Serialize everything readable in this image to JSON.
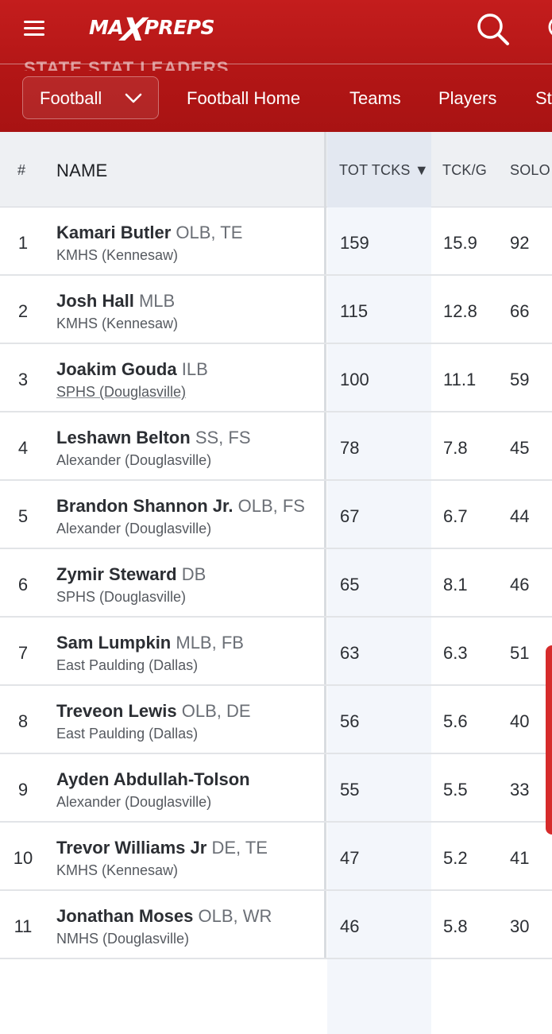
{
  "header": {
    "logo_text_left": "MA",
    "logo_x": "X",
    "logo_text_right": "PREPS",
    "ghost_title": "STATE STAT LEADERS"
  },
  "subnav": {
    "sport": "Football",
    "links": [
      "Football Home",
      "Teams",
      "Players",
      "St"
    ]
  },
  "table": {
    "columns": {
      "rank": "#",
      "name": "NAME",
      "tot_tcks": "TOT TCKS",
      "sort_arrow": "▼",
      "tck_g": "TCK/G",
      "solo": "SOLO"
    },
    "rows": [
      {
        "rank": "1",
        "name": "Kamari Butler",
        "pos": "OLB, TE",
        "school": "KMHS (Kennesaw)",
        "tot": "159",
        "tckg": "15.9",
        "solo": "92"
      },
      {
        "rank": "2",
        "name": "Josh Hall",
        "pos": "MLB",
        "school": "KMHS (Kennesaw)",
        "tot": "115",
        "tckg": "12.8",
        "solo": "66"
      },
      {
        "rank": "3",
        "name": "Joakim Gouda",
        "pos": "ILB",
        "school": "SPHS (Douglasville)",
        "tot": "100",
        "tckg": "11.1",
        "solo": "59"
      },
      {
        "rank": "4",
        "name": "Leshawn Belton",
        "pos": "SS, FS",
        "school": "Alexander (Douglasville)",
        "tot": "78",
        "tckg": "7.8",
        "solo": "45"
      },
      {
        "rank": "5",
        "name": "Brandon Shannon Jr.",
        "pos": "OLB, FS",
        "school": "Alexander (Douglasville)",
        "tot": "67",
        "tckg": "6.7",
        "solo": "44"
      },
      {
        "rank": "6",
        "name": "Zymir Steward",
        "pos": "DB",
        "school": "SPHS (Douglasville)",
        "tot": "65",
        "tckg": "8.1",
        "solo": "46"
      },
      {
        "rank": "7",
        "name": "Sam Lumpkin",
        "pos": "MLB, FB",
        "school": "East Paulding (Dallas)",
        "tot": "63",
        "tckg": "6.3",
        "solo": "51"
      },
      {
        "rank": "8",
        "name": "Treveon Lewis",
        "pos": "OLB, DE",
        "school": "East Paulding (Dallas)",
        "tot": "56",
        "tckg": "5.6",
        "solo": "40"
      },
      {
        "rank": "9",
        "name": "Ayden Abdullah-Tolson",
        "pos": "",
        "school": "Alexander (Douglasville)",
        "tot": "55",
        "tckg": "5.5",
        "solo": "33"
      },
      {
        "rank": "10",
        "name": "Trevor Williams Jr",
        "pos": "DE, TE",
        "school": "KMHS (Kennesaw)",
        "tot": "47",
        "tckg": "5.2",
        "solo": "41"
      },
      {
        "rank": "11",
        "name": "Jonathan Moses",
        "pos": "OLB, WR",
        "school": "NMHS (Douglasville)",
        "tot": "46",
        "tckg": "5.8",
        "solo": "30"
      }
    ]
  },
  "colors": {
    "brand_red": "#c41d1d",
    "subnav_red": "#b41616",
    "sorted_column": "#f3f6fb",
    "header_gray": "#eef0f3"
  },
  "icons": [
    "hamburger-menu-icon",
    "search-icon",
    "chevron-down-icon",
    "sort-desc-icon"
  ]
}
